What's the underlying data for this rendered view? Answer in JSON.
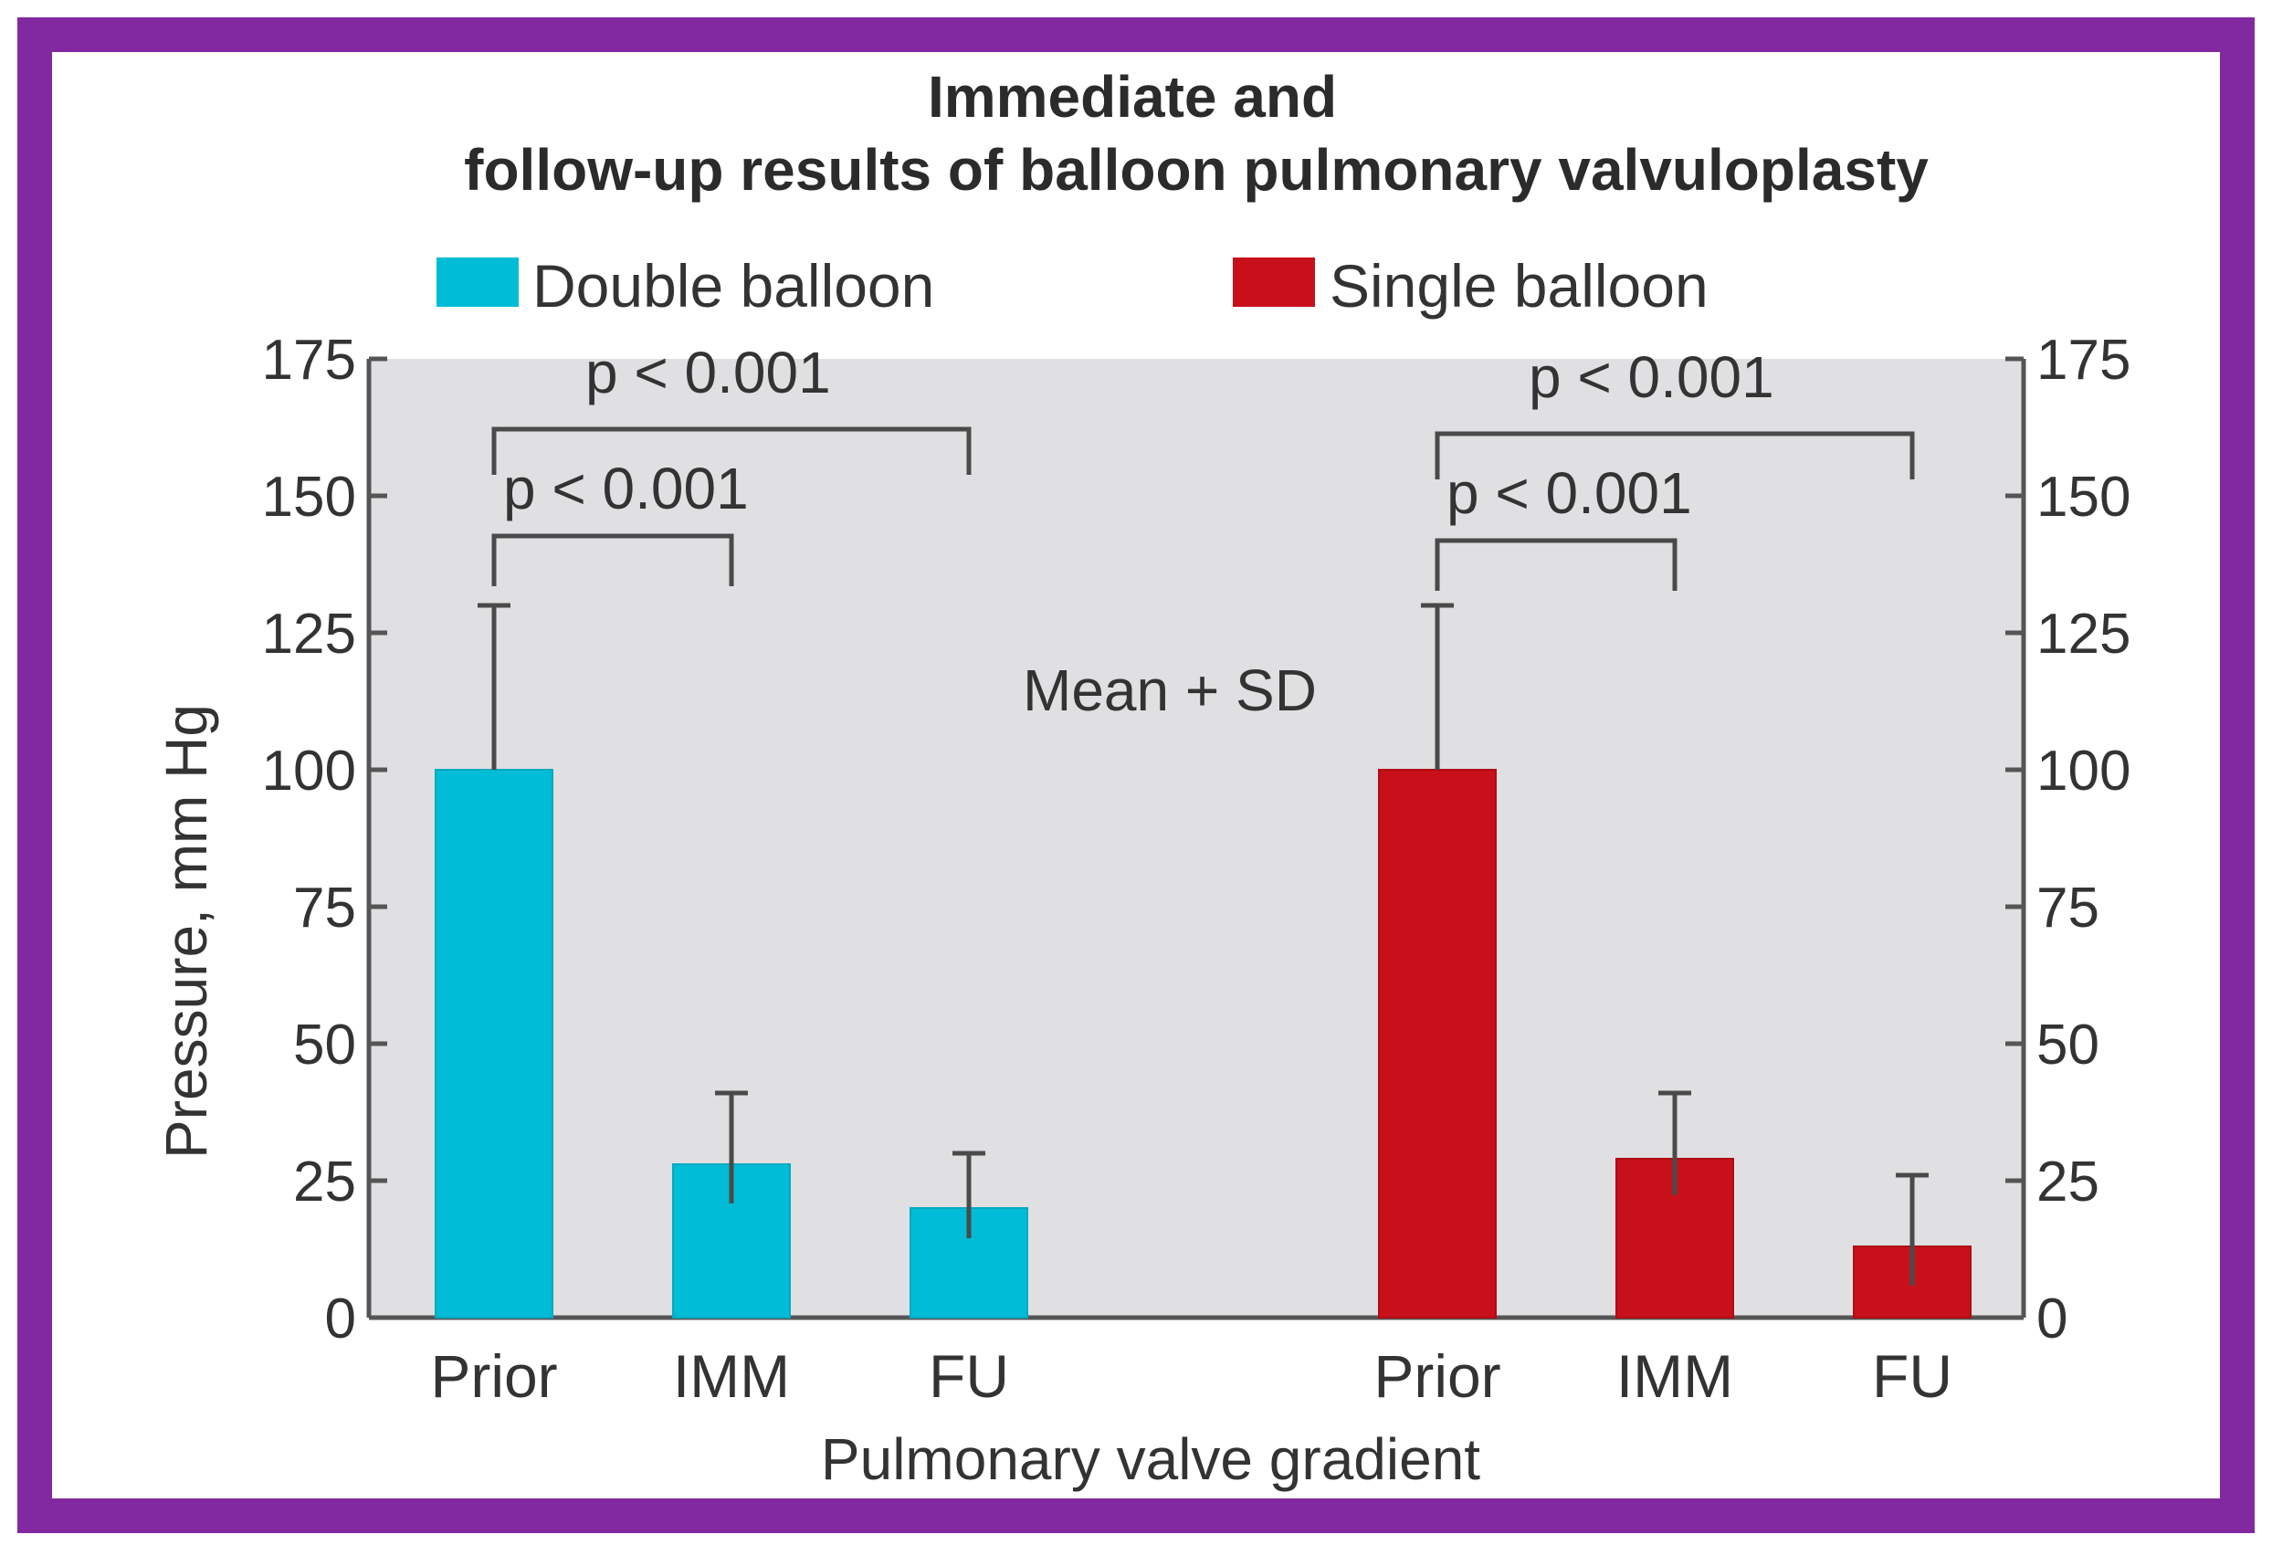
{
  "chart_data": {
    "type": "bar",
    "title_line1": "Immediate and",
    "title_line2": "follow-up results of balloon pulmonary valvuloplasty",
    "xlabel": "Pulmonary valve gradient",
    "ylabel": "Pressure, mm Hg",
    "ylim": [
      0,
      175
    ],
    "yticks": [
      "0",
      "25",
      "50",
      "75",
      "100",
      "125",
      "150",
      "175"
    ],
    "grid": false,
    "legend_position": "top",
    "annotation": "Mean + SD",
    "groups": [
      {
        "name": "Double balloon",
        "color": "#00bcd6",
        "categories": [
          "Prior",
          "IMM",
          "FU"
        ],
        "values": [
          100,
          28,
          20
        ],
        "sd": [
          30,
          13,
          10
        ],
        "significance": [
          {
            "from": 0,
            "to": 1,
            "label": "p < 0.001"
          },
          {
            "from": 0,
            "to": 2,
            "label": "p < 0.001"
          }
        ]
      },
      {
        "name": "Single balloon",
        "color": "#c8101a",
        "categories": [
          "Prior",
          "IMM",
          "FU"
        ],
        "values": [
          100,
          29,
          13
        ],
        "sd": [
          30,
          12,
          13
        ],
        "significance": [
          {
            "from": 0,
            "to": 1,
            "label": "p < 0.001"
          },
          {
            "from": 0,
            "to": 2,
            "label": "p < 0.001"
          }
        ]
      }
    ]
  },
  "colors": {
    "frame": "#8228a0",
    "plot_background": "#e0e0e2"
  }
}
